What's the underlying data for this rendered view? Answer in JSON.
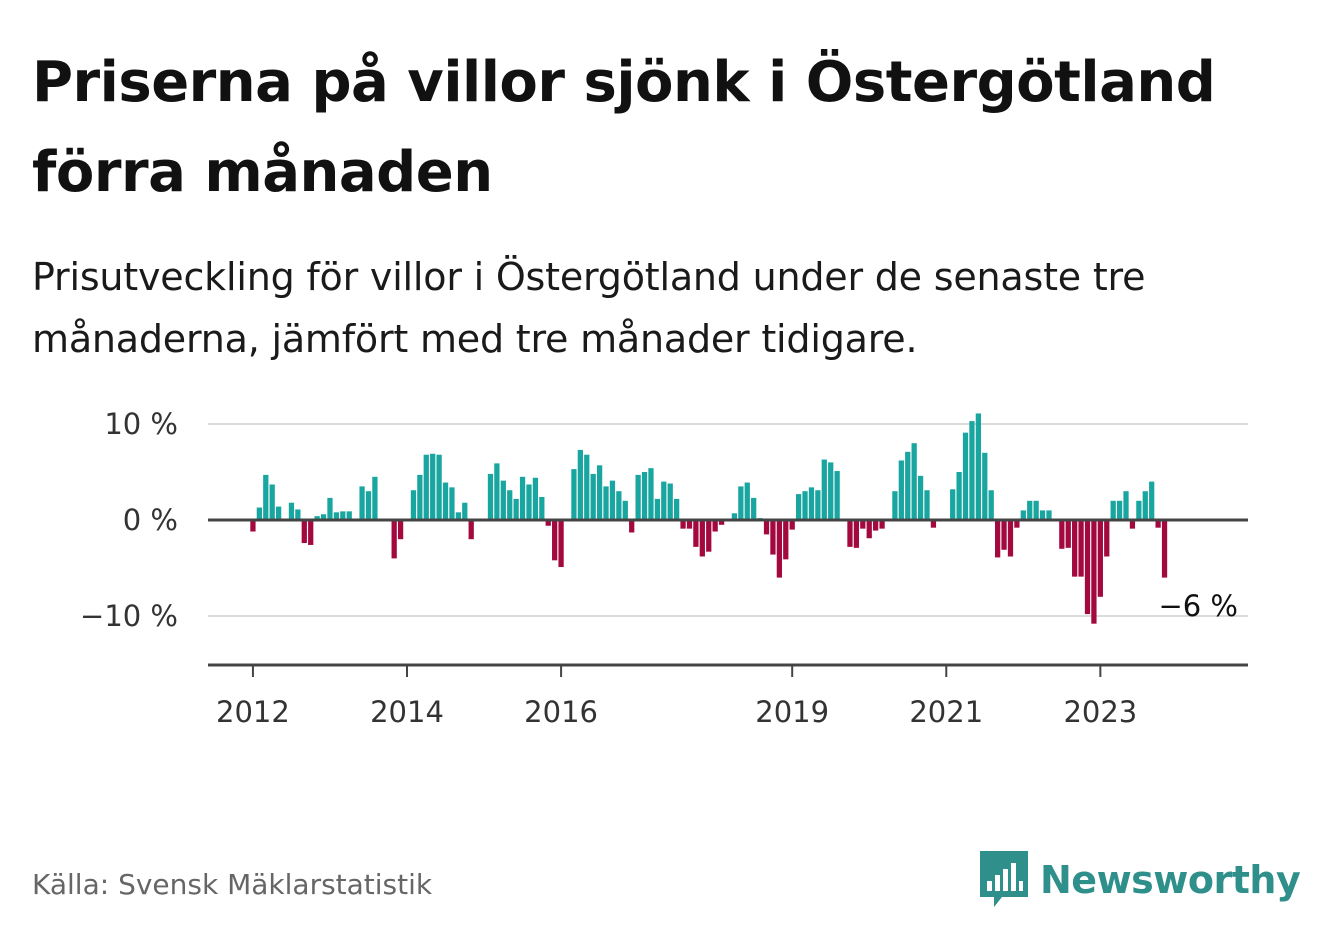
{
  "title": "Priserna på villor sjönk i Östergötland förra månaden",
  "subtitle": "Prisutveckling för villor i Östergötland under de senaste tre månaderna, jämfört med tre månader tidigare.",
  "source": "Källa: Svensk Mäklarstatistik",
  "brand": {
    "name": "Newsworthy",
    "icon": "newsworthy-logo-icon"
  },
  "colors": {
    "positive": "#1aa6a0",
    "negative": "#a3083f",
    "grid": "#dcdcdc",
    "axis": "#444444"
  },
  "chart_data": {
    "type": "bar",
    "title": "",
    "xlabel": "",
    "ylabel": "",
    "ylim": [
      -12.5,
      12.5
    ],
    "xlim": [
      "2011-06",
      "2024-12"
    ],
    "y_ticks": [
      {
        "value": 10,
        "label": "10 %"
      },
      {
        "value": 0,
        "label": "0 %"
      },
      {
        "value": -10,
        "label": "−10 %"
      }
    ],
    "x_ticks": [
      {
        "value": "2012-01",
        "label": "2012"
      },
      {
        "value": "2014-01",
        "label": "2014"
      },
      {
        "value": "2016-01",
        "label": "2016"
      },
      {
        "value": "2019-01",
        "label": "2019"
      },
      {
        "value": "2021-01",
        "label": "2021"
      },
      {
        "value": "2023-01",
        "label": "2023"
      }
    ],
    "end_label": "−6 %",
    "grid": true,
    "x": [
      "2012-01",
      "2012-02",
      "2012-03",
      "2012-04",
      "2012-05",
      "2012-06",
      "2012-07",
      "2012-08",
      "2012-09",
      "2012-10",
      "2012-11",
      "2012-12",
      "2013-01",
      "2013-02",
      "2013-03",
      "2013-04",
      "2013-05",
      "2013-06",
      "2013-07",
      "2013-08",
      "2013-09",
      "2013-10",
      "2013-11",
      "2013-12",
      "2014-01",
      "2014-02",
      "2014-03",
      "2014-04",
      "2014-05",
      "2014-06",
      "2014-07",
      "2014-08",
      "2014-09",
      "2014-10",
      "2014-11",
      "2014-12",
      "2015-01",
      "2015-02",
      "2015-03",
      "2015-04",
      "2015-05",
      "2015-06",
      "2015-07",
      "2015-08",
      "2015-09",
      "2015-10",
      "2015-11",
      "2015-12",
      "2016-01",
      "2016-02",
      "2016-03",
      "2016-04",
      "2016-05",
      "2016-06",
      "2016-07",
      "2016-08",
      "2016-09",
      "2016-10",
      "2016-11",
      "2016-12",
      "2017-01",
      "2017-02",
      "2017-03",
      "2017-04",
      "2017-05",
      "2017-06",
      "2017-07",
      "2017-08",
      "2017-09",
      "2017-10",
      "2017-11",
      "2017-12",
      "2018-01",
      "2018-02",
      "2018-03",
      "2018-04",
      "2018-05",
      "2018-06",
      "2018-07",
      "2018-08",
      "2018-09",
      "2018-10",
      "2018-11",
      "2018-12",
      "2019-01",
      "2019-02",
      "2019-03",
      "2019-04",
      "2019-05",
      "2019-06",
      "2019-07",
      "2019-08",
      "2019-09",
      "2019-10",
      "2019-11",
      "2019-12",
      "2020-01",
      "2020-02",
      "2020-03",
      "2020-04",
      "2020-05",
      "2020-06",
      "2020-07",
      "2020-08",
      "2020-09",
      "2020-10",
      "2020-11",
      "2020-12",
      "2021-01",
      "2021-02",
      "2021-03",
      "2021-04",
      "2021-05",
      "2021-06",
      "2021-07",
      "2021-08",
      "2021-09",
      "2021-10",
      "2021-11",
      "2021-12",
      "2022-01",
      "2022-02",
      "2022-03",
      "2022-04",
      "2022-05",
      "2022-06",
      "2022-07",
      "2022-08",
      "2022-09",
      "2022-10",
      "2022-11",
      "2022-12",
      "2023-01",
      "2023-02",
      "2023-03",
      "2023-04",
      "2023-05",
      "2023-06",
      "2023-07",
      "2023-08",
      "2023-09",
      "2023-10",
      "2023-11",
      "2023-12"
    ],
    "values": [
      -1.2,
      1.3,
      4.7,
      3.7,
      1.4,
      null,
      1.8,
      1.1,
      -2.4,
      -2.6,
      0.4,
      0.6,
      2.3,
      0.8,
      0.9,
      0.9,
      null,
      3.5,
      3.0,
      4.5,
      null,
      null,
      -4.0,
      -2.0,
      null,
      3.1,
      4.7,
      6.8,
      6.9,
      6.8,
      3.9,
      3.4,
      0.8,
      1.8,
      -2.0,
      null,
      null,
      4.8,
      5.9,
      4.1,
      3.1,
      2.2,
      4.5,
      3.7,
      4.4,
      2.4,
      -0.6,
      -4.2,
      -4.9,
      null,
      5.3,
      7.3,
      6.8,
      4.8,
      5.7,
      3.5,
      4.1,
      3.0,
      2.0,
      -1.3,
      4.7,
      5.0,
      5.4,
      2.2,
      4.0,
      3.8,
      2.2,
      -0.9,
      -0.9,
      -2.8,
      -3.8,
      -3.3,
      -1.2,
      -0.5,
      null,
      0.7,
      3.5,
      3.9,
      2.3,
      0.2,
      -1.5,
      -3.6,
      -6.0,
      -4.1,
      -1.0,
      2.7,
      3.0,
      3.4,
      3.1,
      6.3,
      6.0,
      5.1,
      null,
      -2.8,
      -2.9,
      -0.9,
      -1.9,
      -1.1,
      -0.9,
      null,
      3.0,
      6.2,
      7.1,
      8.0,
      4.6,
      3.1,
      -0.8,
      null,
      null,
      3.2,
      5.0,
      9.1,
      10.3,
      11.1,
      7.0,
      3.1,
      -3.9,
      -3.1,
      -3.8,
      -0.8,
      1.0,
      2.0,
      2.0,
      1.0,
      1.0,
      null,
      -3.0,
      -2.9,
      -5.9,
      -5.9,
      -9.8,
      -10.8,
      -8.0,
      -3.8,
      2.0,
      2.0,
      3.0,
      -0.9,
      2.0,
      3.0,
      4.0,
      -0.8,
      -6.0,
      null
    ]
  }
}
